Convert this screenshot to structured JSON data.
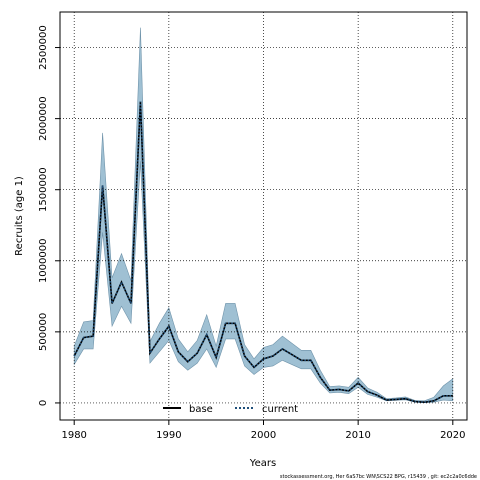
{
  "chart_data": {
    "type": "line",
    "title": "",
    "xlabel": "Years",
    "ylabel": "Recruits (age 1)",
    "xlim": [
      1978.5,
      2021.5
    ],
    "ylim": [
      -120000,
      2750000
    ],
    "x_ticks": [
      1980,
      1990,
      2000,
      2010,
      2020
    ],
    "y_ticks": [
      0,
      500000,
      1000000,
      1500000,
      2000000,
      2500000
    ],
    "x_tick_labels": [
      "1980",
      "1990",
      "2000",
      "2010",
      "2020"
    ],
    "y_tick_labels": [
      "0",
      "500000",
      "1000000",
      "1500000",
      "2000000",
      "2500000"
    ],
    "grid": true,
    "legend_position": "bottom-center",
    "footer": "stockassessment.org, Her 6aS7bc WN\\SCS22 BPG, r15439 , git: ec2c2a0c6dde",
    "years": [
      1980,
      1981,
      1982,
      1983,
      1984,
      1985,
      1986,
      1987,
      1988,
      1989,
      1990,
      1991,
      1992,
      1993,
      1994,
      1995,
      1996,
      1997,
      1998,
      1999,
      2000,
      2001,
      2002,
      2003,
      2004,
      2005,
      2006,
      2007,
      2008,
      2009,
      2010,
      2011,
      2012,
      2013,
      2014,
      2015,
      2016,
      2017,
      2018,
      2019,
      2020
    ],
    "series": [
      {
        "name": "base",
        "style": "solid",
        "color": "#000000",
        "values": [
          330000,
          460000,
          470000,
          1530000,
          700000,
          850000,
          700000,
          2120000,
          350000,
          450000,
          540000,
          360000,
          290000,
          350000,
          480000,
          320000,
          560000,
          560000,
          330000,
          250000,
          310000,
          330000,
          380000,
          340000,
          300000,
          300000,
          180000,
          90000,
          95000,
          85000,
          140000,
          80000,
          55000,
          20000,
          25000,
          30000,
          10000,
          5000,
          15000,
          50000,
          50000
        ]
      },
      {
        "name": "current",
        "style": "dotted",
        "color": "#000000",
        "values": [
          330000,
          460000,
          470000,
          1530000,
          700000,
          850000,
          700000,
          2120000,
          350000,
          450000,
          540000,
          360000,
          290000,
          350000,
          480000,
          320000,
          560000,
          560000,
          330000,
          250000,
          310000,
          330000,
          380000,
          340000,
          300000,
          300000,
          180000,
          90000,
          95000,
          85000,
          140000,
          80000,
          55000,
          20000,
          25000,
          30000,
          10000,
          5000,
          15000,
          50000,
          50000
        ],
        "lower": [
          270000,
          380000,
          380000,
          1200000,
          540000,
          680000,
          560000,
          1700000,
          280000,
          360000,
          440000,
          290000,
          230000,
          280000,
          380000,
          250000,
          450000,
          450000,
          260000,
          200000,
          250000,
          260000,
          300000,
          270000,
          240000,
          240000,
          140000,
          70000,
          75000,
          65000,
          110000,
          60000,
          40000,
          15000,
          18000,
          22000,
          5000,
          2000,
          5000,
          20000,
          15000
        ],
        "upper": [
          400000,
          570000,
          580000,
          1900000,
          880000,
          1050000,
          860000,
          2640000,
          430000,
          560000,
          670000,
          450000,
          360000,
          440000,
          620000,
          400000,
          700000,
          700000,
          410000,
          310000,
          390000,
          410000,
          470000,
          420000,
          370000,
          370000,
          230000,
          115000,
          120000,
          110000,
          180000,
          105000,
          75000,
          30000,
          35000,
          42000,
          18000,
          15000,
          40000,
          120000,
          170000
        ],
        "band_color": "#9fc0d3",
        "band_edge": "#6f93aa",
        "line_color": "#1f4f7a"
      }
    ]
  }
}
